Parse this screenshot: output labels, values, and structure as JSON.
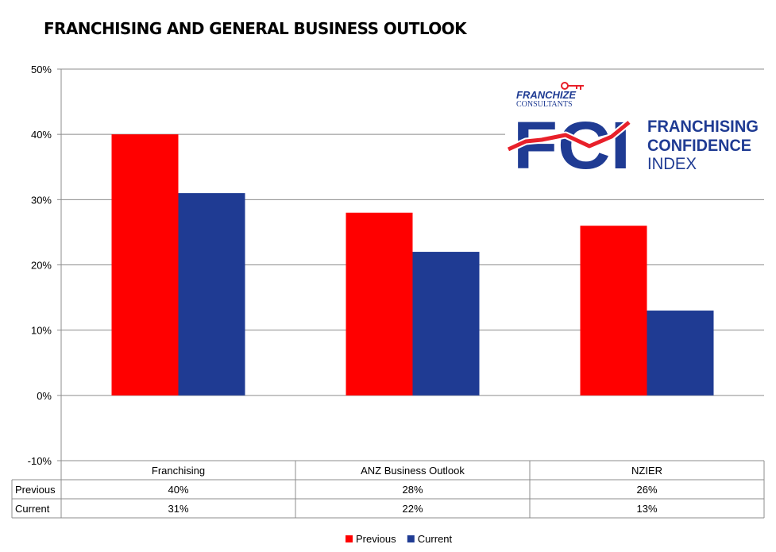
{
  "chart_data": {
    "type": "bar",
    "title": "FRANCHISING AND GENERAL BUSINESS OUTLOOK",
    "categories": [
      "Franchising",
      "ANZ Business Outlook",
      "NZIER"
    ],
    "series": [
      {
        "name": "Previous",
        "values": [
          40,
          28,
          26
        ],
        "color": "#ff0000"
      },
      {
        "name": "Current",
        "values": [
          31,
          22,
          13
        ],
        "color": "#1f3b93"
      }
    ],
    "ylim": [
      -10,
      50
    ],
    "yticks": [
      50,
      40,
      30,
      20,
      10,
      0,
      -10
    ],
    "ytick_labels": [
      "50%",
      "40%",
      "30%",
      "20%",
      "10%",
      "0%",
      "-10%"
    ],
    "table": {
      "rows": [
        {
          "label": "Previous",
          "cells": [
            "40%",
            "28%",
            "26%"
          ]
        },
        {
          "label": "Current",
          "cells": [
            "31%",
            "22%",
            "13%"
          ]
        }
      ]
    },
    "legend": {
      "position": "bottom",
      "entries": [
        "Previous",
        "Current"
      ]
    },
    "grid": true
  },
  "logo": {
    "brand_top": "FRANCHIZE",
    "brand_bottom": "CONSULTANTS",
    "acronym": "FCI",
    "line1": "FRANCHISING",
    "line2": "CONFIDENCE",
    "line3": "INDEX",
    "red": "#e8202a",
    "blue": "#1f3b93"
  }
}
